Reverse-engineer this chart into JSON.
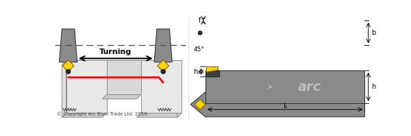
{
  "bg_color": "#ffffff",
  "tool_gray": "#8A8A8A",
  "tool_gray2": "#909090",
  "insert_yellow": "#FFD700",
  "insert_border": "#8B6914",
  "insert_circle": "#222222",
  "red_line": "#FF0000",
  "workpiece_light": "#E8E8E8",
  "workpiece_mid": "#D0D0D0",
  "workpiece_dark": "#C0C0C0",
  "arc_logo_color": "#BBBBBB",
  "dim_color": "#000000",
  "text_color": "#000000",
  "copyright_text": "© Copyright Arc Euro Trade Ltd. 2016.",
  "turning_text": "Turning",
  "angle_text": "45°",
  "f_label": "f",
  "b_label": "b",
  "h1_label": "h₁",
  "h_label": "h",
  "l1_label": "l₁"
}
